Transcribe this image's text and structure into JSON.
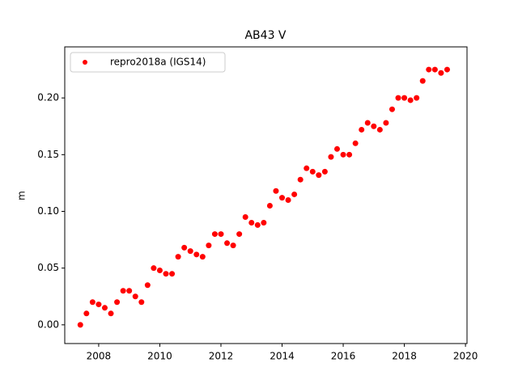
{
  "chart_data": {
    "type": "scatter",
    "title": "AB43 V",
    "y_label": "m",
    "legend_position": "upper left",
    "xlim": [
      2006.89,
      2020.05
    ],
    "ylim": [
      -0.0165,
      0.245
    ],
    "xticks": [
      2008,
      2010,
      2012,
      2014,
      2016,
      2018,
      2020
    ],
    "yticks": [
      {
        "value": 0,
        "label": "0.00"
      },
      {
        "value": 0.05,
        "label": "0.05"
      },
      {
        "value": 0.1,
        "label": "0.10"
      },
      {
        "value": 0.15,
        "label": "0.15"
      },
      {
        "value": 0.2,
        "label": "0.20"
      }
    ],
    "series": [
      {
        "name": "repro2018a (IGS14)",
        "color": "#ff0000",
        "x": [
          2007.4,
          2007.6,
          2007.8,
          2008.0,
          2008.2,
          2008.4,
          2008.6,
          2008.8,
          2009.0,
          2009.2,
          2009.4,
          2009.6,
          2009.8,
          2010.0,
          2010.2,
          2010.4,
          2010.6,
          2010.8,
          2011.0,
          2011.2,
          2011.4,
          2011.6,
          2011.8,
          2012.0,
          2012.2,
          2012.4,
          2012.6,
          2012.8,
          2013.0,
          2013.2,
          2013.4,
          2013.6,
          2013.8,
          2014.0,
          2014.2,
          2014.4,
          2014.6,
          2014.8,
          2015.0,
          2015.2,
          2015.4,
          2015.6,
          2015.8,
          2016.0,
          2016.2,
          2016.4,
          2016.6,
          2016.8,
          2017.0,
          2017.2,
          2017.4,
          2017.6,
          2017.8,
          2018.0,
          2018.2,
          2018.4,
          2018.6,
          2018.8,
          2019.0,
          2019.2,
          2019.4
        ],
        "values": [
          0.0,
          0.01,
          0.02,
          0.018,
          0.015,
          0.01,
          0.02,
          0.03,
          0.03,
          0.025,
          0.02,
          0.035,
          0.05,
          0.048,
          0.045,
          0.045,
          0.06,
          0.068,
          0.065,
          0.062,
          0.06,
          0.07,
          0.08,
          0.08,
          0.072,
          0.07,
          0.08,
          0.095,
          0.09,
          0.088,
          0.09,
          0.105,
          0.118,
          0.112,
          0.11,
          0.115,
          0.128,
          0.138,
          0.135,
          0.132,
          0.135,
          0.148,
          0.155,
          0.15,
          0.15,
          0.16,
          0.172,
          0.178,
          0.175,
          0.172,
          0.178,
          0.19,
          0.2,
          0.2,
          0.198,
          0.2,
          0.215,
          0.225,
          0.225,
          0.222,
          0.225
        ]
      }
    ]
  }
}
